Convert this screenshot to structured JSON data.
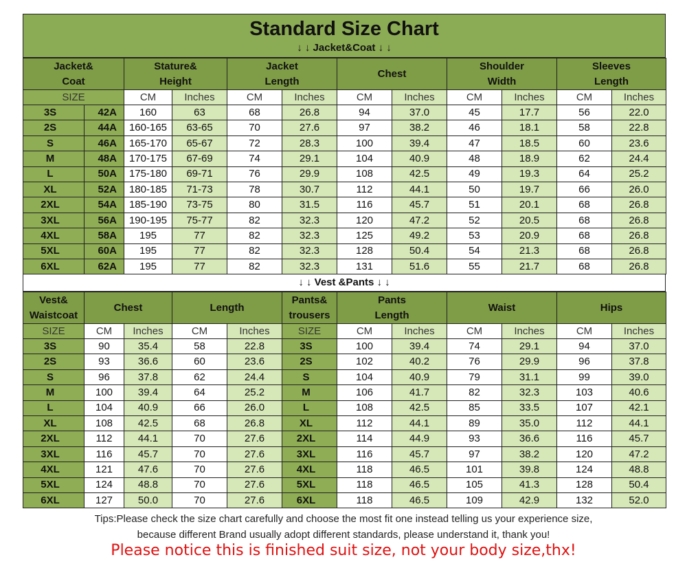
{
  "title": "Standard Size Chart",
  "jacket": {
    "label": "↓ ↓ Jacket&Coat ↓ ↓",
    "headers": [
      [
        "Jacket&",
        "Coat"
      ],
      [
        "Stature&",
        "Height"
      ],
      [
        "Jacket",
        "Length"
      ],
      [
        "Chest"
      ],
      [
        "Shoulder",
        "Width"
      ],
      [
        "Sleeves",
        "Length"
      ]
    ],
    "units": [
      "SIZE",
      "CM",
      "Inches",
      "CM",
      "Inches",
      "CM",
      "Inches",
      "CM",
      "Inches",
      "CM",
      "Inches"
    ],
    "rows": [
      [
        "3S",
        "42A",
        "160",
        "63",
        "68",
        "26.8",
        "94",
        "37.0",
        "45",
        "17.7",
        "56",
        "22.0"
      ],
      [
        "2S",
        "44A",
        "160-165",
        "63-65",
        "70",
        "27.6",
        "97",
        "38.2",
        "46",
        "18.1",
        "58",
        "22.8"
      ],
      [
        "S",
        "46A",
        "165-170",
        "65-67",
        "72",
        "28.3",
        "100",
        "39.4",
        "47",
        "18.5",
        "60",
        "23.6"
      ],
      [
        "M",
        "48A",
        "170-175",
        "67-69",
        "74",
        "29.1",
        "104",
        "40.9",
        "48",
        "18.9",
        "62",
        "24.4"
      ],
      [
        "L",
        "50A",
        "175-180",
        "69-71",
        "76",
        "29.9",
        "108",
        "42.5",
        "49",
        "19.3",
        "64",
        "25.2"
      ],
      [
        "XL",
        "52A",
        "180-185",
        "71-73",
        "78",
        "30.7",
        "112",
        "44.1",
        "50",
        "19.7",
        "66",
        "26.0"
      ],
      [
        "2XL",
        "54A",
        "185-190",
        "73-75",
        "80",
        "31.5",
        "116",
        "45.7",
        "51",
        "20.1",
        "68",
        "26.8"
      ],
      [
        "3XL",
        "56A",
        "190-195",
        "75-77",
        "82",
        "32.3",
        "120",
        "47.2",
        "52",
        "20.5",
        "68",
        "26.8"
      ],
      [
        "4XL",
        "58A",
        "195",
        "77",
        "82",
        "32.3",
        "125",
        "49.2",
        "53",
        "20.9",
        "68",
        "26.8"
      ],
      [
        "5XL",
        "60A",
        "195",
        "77",
        "82",
        "32.3",
        "128",
        "50.4",
        "54",
        "21.3",
        "68",
        "26.8"
      ],
      [
        "6XL",
        "62A",
        "195",
        "77",
        "82",
        "32.3",
        "131",
        "51.6",
        "55",
        "21.7",
        "68",
        "26.8"
      ]
    ]
  },
  "vest_pants": {
    "label": "↓ ↓ Vest &Pants ↓ ↓",
    "headers": [
      [
        "Vest&",
        "Waistcoat"
      ],
      [
        "Chest"
      ],
      [
        "Length"
      ],
      [
        "Pants&",
        "trousers"
      ],
      [
        "Pants",
        "Length"
      ],
      [
        "Waist"
      ],
      [
        "Hips"
      ]
    ],
    "units": [
      "SIZE",
      "CM",
      "Inches",
      "CM",
      "Inches",
      "SIZE",
      "CM",
      "Inches",
      "CM",
      "Inches",
      "CM",
      "Inches"
    ],
    "rows": [
      [
        "3S",
        "90",
        "35.4",
        "58",
        "22.8",
        "3S",
        "100",
        "39.4",
        "74",
        "29.1",
        "94",
        "37.0"
      ],
      [
        "2S",
        "93",
        "36.6",
        "60",
        "23.6",
        "2S",
        "102",
        "40.2",
        "76",
        "29.9",
        "96",
        "37.8"
      ],
      [
        "S",
        "96",
        "37.8",
        "62",
        "24.4",
        "S",
        "104",
        "40.9",
        "79",
        "31.1",
        "99",
        "39.0"
      ],
      [
        "M",
        "100",
        "39.4",
        "64",
        "25.2",
        "M",
        "106",
        "41.7",
        "82",
        "32.3",
        "103",
        "40.6"
      ],
      [
        "L",
        "104",
        "40.9",
        "66",
        "26.0",
        "L",
        "108",
        "42.5",
        "85",
        "33.5",
        "107",
        "42.1"
      ],
      [
        "XL",
        "108",
        "42.5",
        "68",
        "26.8",
        "XL",
        "112",
        "44.1",
        "89",
        "35.0",
        "112",
        "44.1"
      ],
      [
        "2XL",
        "112",
        "44.1",
        "70",
        "27.6",
        "2XL",
        "114",
        "44.9",
        "93",
        "36.6",
        "116",
        "45.7"
      ],
      [
        "3XL",
        "116",
        "45.7",
        "70",
        "27.6",
        "3XL",
        "116",
        "45.7",
        "97",
        "38.2",
        "120",
        "47.2"
      ],
      [
        "4XL",
        "121",
        "47.6",
        "70",
        "27.6",
        "4XL",
        "118",
        "46.5",
        "101",
        "39.8",
        "124",
        "48.8"
      ],
      [
        "5XL",
        "124",
        "48.8",
        "70",
        "27.6",
        "5XL",
        "118",
        "46.5",
        "105",
        "41.3",
        "128",
        "50.4"
      ],
      [
        "6XL",
        "127",
        "50.0",
        "70",
        "27.6",
        "6XL",
        "118",
        "46.5",
        "109",
        "42.9",
        "132",
        "52.0"
      ]
    ]
  },
  "tips": [
    "Tips:Please check the size chart carefully and choose the most fit one instead telling us your experience size,",
    "because different Brand usually adopt different standards, please understand it, thank you!"
  ],
  "notice": "Please notice this is finished suit size, not your body size,thx!"
}
